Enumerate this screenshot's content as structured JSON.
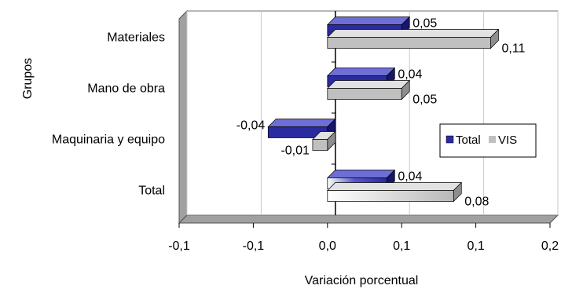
{
  "chart_data": {
    "type": "bar",
    "orientation": "horizontal",
    "style": "3d-clustered",
    "title": "",
    "xlabel": "Variación porcentual",
    "ylabel": "Grupos",
    "categories": [
      "Materiales",
      "Mano de obra",
      "Maquinaria y equipo",
      "Total"
    ],
    "series": [
      {
        "name": "Total",
        "color": "#2b2ba0",
        "values": [
          0.1,
          0.08,
          -0.08,
          0.08
        ],
        "labels": [
          "0,05",
          "0,04",
          "-0,04",
          "0,04"
        ]
      },
      {
        "name": "VIS",
        "color": "#c0c0c0",
        "values": [
          0.22,
          0.1,
          -0.02,
          0.17
        ],
        "labels": [
          "0,11",
          "0,05",
          "-0,01",
          "0,08"
        ]
      }
    ],
    "xlim": [
      -0.2,
      0.3
    ],
    "x_ticks": [
      -0.2,
      -0.1,
      0.0,
      0.1,
      0.2,
      0.3
    ],
    "x_tick_labels": [
      "-0,1",
      "-0,1",
      "0,0",
      "0,1",
      "0,1",
      "0,2"
    ],
    "grid": "vertical",
    "legend": "right"
  }
}
